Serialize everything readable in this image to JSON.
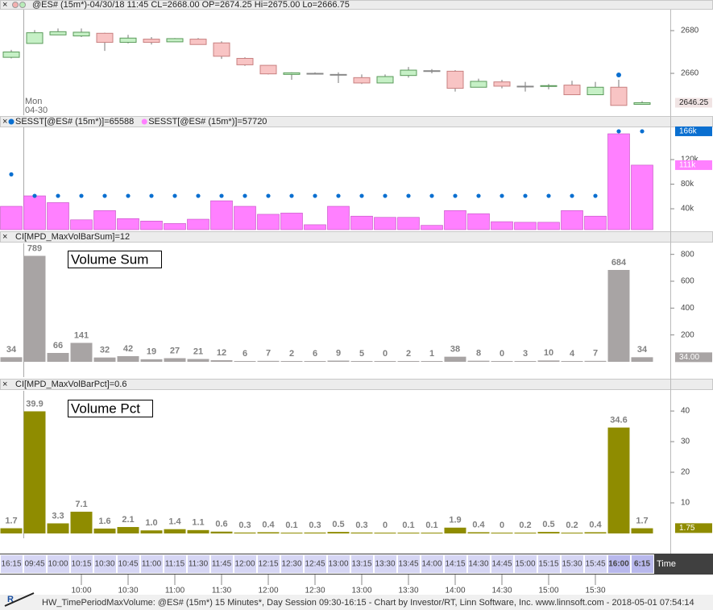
{
  "chart_data": [
    {
      "type": "candlestick",
      "title": "@ES# (15m*)-04/30/18 11:45 CL=2668.00 OP=2674.25 Hi=2675.00 Lo=2666.75",
      "open": [
        2667.5,
        2674,
        2678,
        2677.5,
        2678.75,
        2674.5,
        2676,
        2674.75,
        2676,
        2674.25,
        2667,
        2663.75,
        2659.5,
        2660,
        2659.5,
        2658,
        2655.5,
        2659,
        2661.25,
        2661,
        2653.5,
        2656,
        2654,
        2654,
        2654.5,
        2650,
        2653.5,
        2645.5
      ],
      "high": [
        2671,
        2680.25,
        2681,
        2681,
        2679,
        2678,
        2677,
        2676.5,
        2676.5,
        2675,
        2667.5,
        2663.75,
        2660.5,
        2660.5,
        2660.5,
        2659.5,
        2659.5,
        2663,
        2662,
        2661.5,
        2657.5,
        2657,
        2656,
        2655,
        2656.5,
        2656,
        2657,
        2647
      ],
      "low": [
        2667,
        2674,
        2678,
        2677,
        2670.5,
        2674,
        2673.5,
        2674.75,
        2673.5,
        2666.75,
        2663.5,
        2659.5,
        2657,
        2659.5,
        2655.5,
        2655,
        2655.5,
        2658,
        2660,
        2651.5,
        2653.5,
        2653,
        2651.5,
        2652.5,
        2650,
        2650,
        2645,
        2645.5
      ],
      "close": [
        2670,
        2679,
        2679.5,
        2679.25,
        2674.5,
        2676.5,
        2674.5,
        2676.25,
        2673.5,
        2668,
        2664,
        2659.75,
        2660.25,
        2660,
        2659.5,
        2655.5,
        2658.5,
        2661.5,
        2661.25,
        2653,
        2656.25,
        2654,
        2654,
        2654.25,
        2650,
        2653.5,
        2645,
        2646.25
      ],
      "signal": [
        null,
        null,
        null,
        null,
        null,
        null,
        null,
        null,
        null,
        null,
        null,
        null,
        null,
        null,
        null,
        null,
        null,
        null,
        null,
        null,
        null,
        null,
        null,
        null,
        null,
        null,
        2659.25,
        null
      ],
      "signal_color": "#0a6fd0",
      "up_color": "#c6f0c6",
      "down_color": "#f8c4c4",
      "ylim": [
        2640.4,
        2689.8
      ],
      "yticks": [
        2660,
        2680
      ],
      "current": [
        {
          "value": 2646.25,
          "label": "2646.25",
          "color": "#f0e4e4"
        }
      ],
      "session_label": [
        "Mon",
        "04-30"
      ]
    },
    {
      "type": "bar",
      "series": [
        {
          "name": "SESST[@ES# (15m*)]=65588",
          "color": "#0a6fd0",
          "style": "dots",
          "values": [
            96000,
            61000,
            61000,
            61000,
            61000,
            61000,
            61000,
            61000,
            61000,
            61000,
            61000,
            61000,
            61000,
            61000,
            61000,
            61000,
            61000,
            61000,
            61000,
            61000,
            61000,
            61000,
            61000,
            61000,
            61000,
            61000,
            166000,
            166000
          ]
        },
        {
          "name": "SESST[@ES# (15m*)]=57720",
          "color": "#ff80ff",
          "style": "bars",
          "values": [
            44000,
            61000,
            50000,
            22000,
            37000,
            24000,
            20000,
            16000,
            23000,
            53000,
            44000,
            31000,
            33000,
            14000,
            44000,
            28000,
            26000,
            26000,
            13000,
            37000,
            32000,
            19000,
            18000,
            18000,
            37000,
            28000,
            162000,
            111000
          ]
        }
      ],
      "ylim": [
        6000,
        172500
      ],
      "yticks": [
        {
          "value": 40000,
          "label": "40k"
        },
        {
          "value": 80000,
          "label": "80k"
        },
        {
          "value": 120000,
          "label": "120k"
        }
      ],
      "current": [
        {
          "value": 166000,
          "label": "166k",
          "color": "#0a6fd0"
        },
        {
          "value": 111000,
          "label": "111k",
          "color": "#ff80ff"
        }
      ]
    },
    {
      "type": "bar",
      "title": "CI[MPD_MaxVolBarSum]=12",
      "annotation": "Volume Sum",
      "color": "#a8a4a4",
      "values": [
        34,
        789,
        66,
        141,
        32,
        42,
        19,
        27,
        21,
        12,
        6,
        7,
        2,
        6,
        9,
        5,
        0,
        2,
        1,
        38,
        8,
        0,
        3,
        10,
        4,
        7,
        684,
        34
      ],
      "ylim": [
        -18,
        882
      ],
      "yticks": [
        200,
        400,
        600,
        800
      ],
      "current": [
        {
          "value": 34,
          "label": "34.00",
          "color": "#a8a4a4"
        }
      ]
    },
    {
      "type": "bar",
      "title": "CI[MPD_MaxVolBarPct]=0.6",
      "annotation": "Volume Pct",
      "color": "#8f8c00",
      "values": [
        1.7,
        39.9,
        3.3,
        7.1,
        1.6,
        2.1,
        1.0,
        1.4,
        1.1,
        0.6,
        0.3,
        0.4,
        0.1,
        0.3,
        0.5,
        0.3,
        0,
        0.1,
        0.1,
        1.9,
        0.4,
        0,
        0.2,
        0.5,
        0.2,
        0.4,
        34.6,
        1.7
      ],
      "value_labels": [
        "1.7",
        "39.9",
        "3.3",
        "7.1",
        "1.6",
        "2.1",
        "1.0",
        "1.4",
        "1.1",
        "0.6",
        "0.3",
        "0.4",
        "0.1",
        "0.3",
        "0.5",
        "0.3",
        "0",
        "0.1",
        "0.1",
        "1.9",
        "0.4",
        "0",
        "0.2",
        "0.5",
        "0.2",
        "0.4",
        "34.6",
        "1.7"
      ],
      "ylim": [
        -1.05,
        46.6
      ],
      "yticks": [
        10,
        20,
        30,
        40
      ],
      "current": [
        {
          "value": 1.75,
          "label": "1.75",
          "color": "#8f8c00"
        }
      ]
    }
  ],
  "time_axis": {
    "categories": [
      "16:15",
      "09:45",
      "10:00",
      "10:15",
      "10:30",
      "10:45",
      "11:00",
      "11:15",
      "11:30",
      "11:45",
      "12:00",
      "12:15",
      "12:30",
      "12:45",
      "13:00",
      "13:15",
      "13:30",
      "13:45",
      "14:00",
      "14:15",
      "14:30",
      "14:45",
      "15:00",
      "15:15",
      "15:30",
      "15:45",
      "16:00",
      "6:15"
    ],
    "label": "Time",
    "ticks": [
      "10:00",
      "10:30",
      "11:00",
      "11:30",
      "12:00",
      "12:30",
      "13:00",
      "13:30",
      "14:00",
      "14:30",
      "15:00",
      "15:30"
    ]
  },
  "footer": "HW_TimePeriodMaxVolume: @ES# (15m*) 15 Minutes*, Day Session 09:30-16:15 - Chart by Investor/RT, Linn Software, Inc. www.linnsoft.com - 2018-05-01 07:54:14"
}
